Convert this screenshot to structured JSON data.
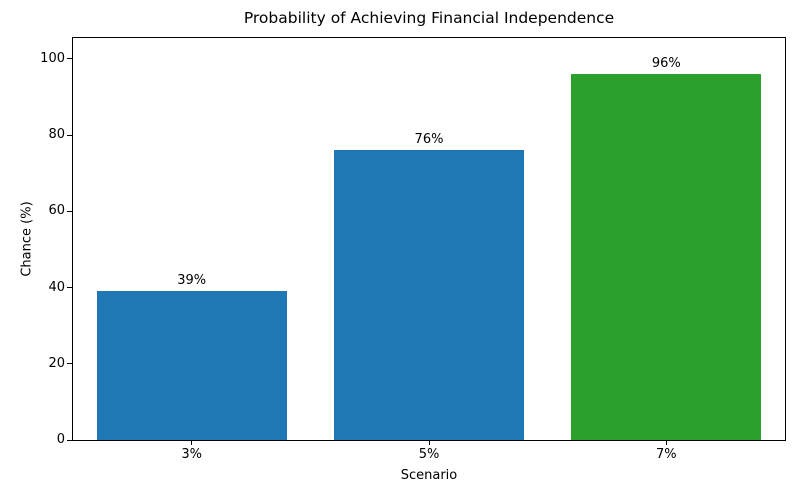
{
  "chart_data": {
    "type": "bar",
    "title": "Probability of Achieving Financial Independence",
    "xlabel": "Scenario",
    "ylabel": "Chance (%)",
    "categories": [
      "3%",
      "5%",
      "7%"
    ],
    "values": [
      39,
      76,
      96
    ],
    "bar_labels": [
      "39%",
      "76%",
      "96%"
    ],
    "bar_colors": [
      "#1f77b4",
      "#1f77b4",
      "#2ca02c"
    ],
    "ylim": [
      0,
      105.5
    ],
    "yticks": [
      0,
      20,
      40,
      60,
      80,
      100
    ],
    "grid": false,
    "legend_position": "none",
    "spine_color": "#000000",
    "background_color": "#ffffff",
    "bar_width_fraction": 0.8
  }
}
